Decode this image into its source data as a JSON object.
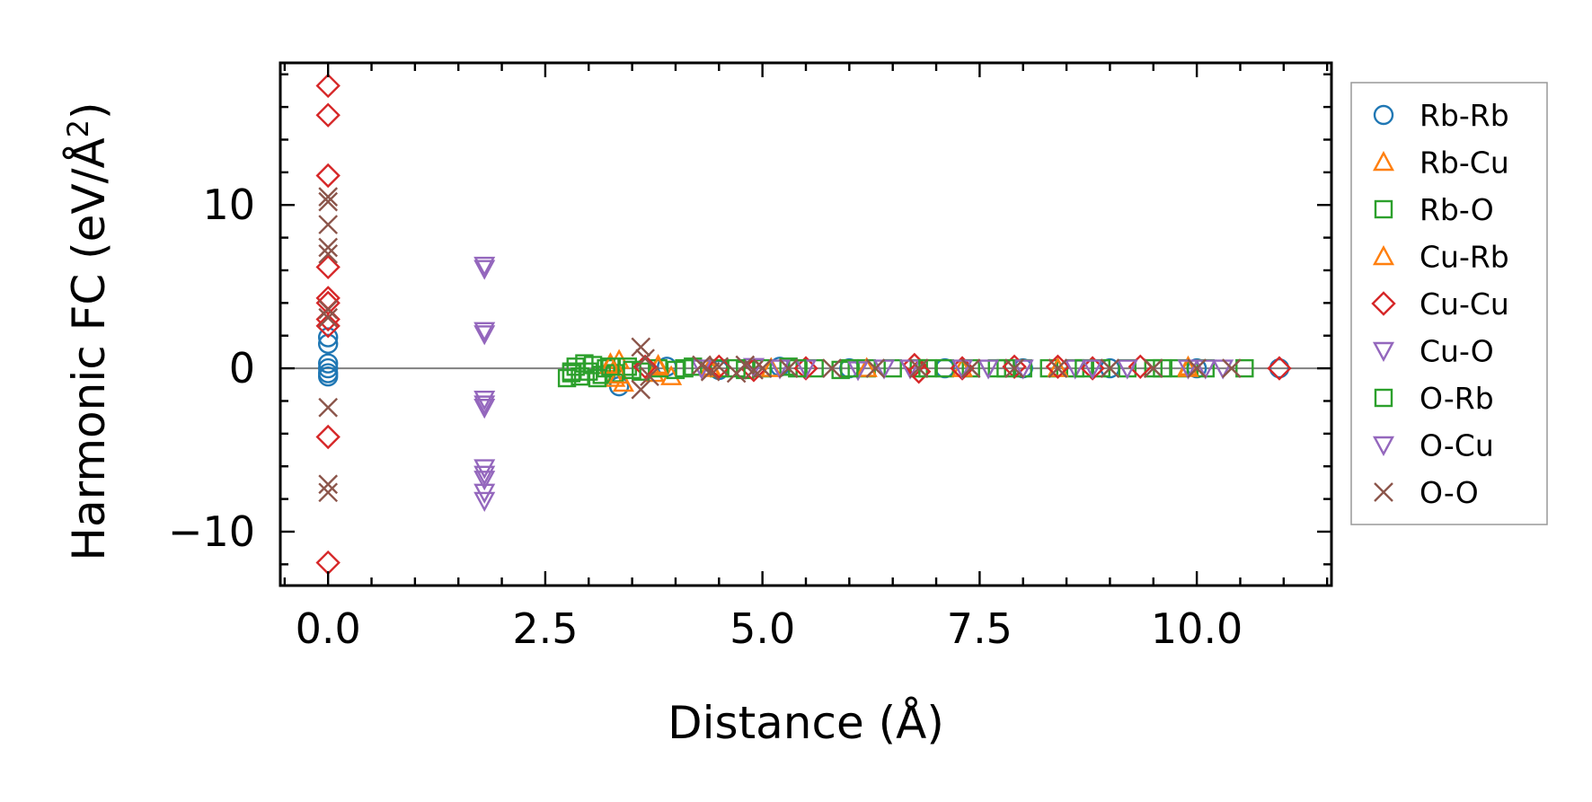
{
  "chart_data": {
    "type": "scatter",
    "title": "",
    "xlabel": "Distance (Å)",
    "ylabel": "Harmonic FC (eV/Å²)",
    "ylabel_parts": {
      "main": "Harmonic FC (eV/Å",
      "sup": "2",
      "tail": ")"
    },
    "xlim": [
      -0.55,
      11.55
    ],
    "ylim": [
      -13.3,
      18.7
    ],
    "xticks": [
      0.0,
      2.5,
      5.0,
      7.5,
      10.0
    ],
    "xtick_labels": [
      "0.0",
      "2.5",
      "5.0",
      "7.5",
      "10.0"
    ],
    "yticks": [
      -10,
      0,
      10
    ],
    "ytick_labels": [
      "−10",
      "0",
      "10"
    ],
    "reference_line_y": 0,
    "grid": false,
    "legend_position": "outside-right",
    "series": [
      {
        "name": "Rb-Rb",
        "marker": "circle",
        "color": "#1f77b4",
        "x": [
          0,
          0,
          0,
          0,
          0,
          0,
          3.35,
          3.9,
          4.5,
          5.2,
          6.0,
          7.1,
          8.0,
          9.0,
          10.0,
          10.95
        ],
        "y": [
          1.5,
          0.3,
          0.0,
          -0.3,
          -0.5,
          1.9,
          -1.1,
          0.1,
          -0.1,
          0.1,
          0.0,
          0.0,
          0.0,
          0.0,
          0.0,
          0.0
        ]
      },
      {
        "name": "Rb-Cu",
        "marker": "triangle-up",
        "color": "#ff7f0e",
        "x": [
          3.25,
          3.3,
          3.35,
          3.4,
          3.75,
          3.8,
          3.95,
          4.4,
          5.1,
          6.2,
          7.3,
          8.4,
          9.9
        ],
        "y": [
          0.3,
          -0.6,
          0.5,
          -0.9,
          -0.3,
          0.2,
          -0.5,
          0.1,
          0.0,
          0.0,
          0.0,
          0.0,
          0.1
        ]
      },
      {
        "name": "Rb-O",
        "marker": "square",
        "color": "#2ca02c",
        "x": [
          2.75,
          2.8,
          2.85,
          2.9,
          3.0,
          3.05,
          3.15,
          3.2,
          3.3,
          3.45,
          3.6,
          3.8,
          4.0,
          4.2,
          4.5,
          4.8,
          5.0,
          5.3,
          5.6,
          5.9,
          6.2,
          6.5,
          6.8,
          7.1,
          7.4,
          7.7,
          8.0,
          8.3,
          8.6,
          8.9,
          9.2,
          9.5,
          9.8,
          10.1,
          10.55
        ],
        "y": [
          -0.6,
          -0.3,
          0.1,
          -0.5,
          -0.2,
          0.2,
          -0.4,
          0.0,
          -0.3,
          0.1,
          -0.2,
          0.0,
          -0.1,
          0.1,
          0.0,
          -0.1,
          0.0,
          0.1,
          0.0,
          -0.1,
          0.0,
          0.0,
          0.0,
          0.0,
          0.0,
          0.0,
          0.0,
          0.0,
          0.0,
          0.0,
          0.0,
          0.0,
          0.0,
          0.0,
          0.0
        ]
      },
      {
        "name": "Cu-Rb",
        "marker": "triangle-up",
        "color": "#ff7f0e",
        "x": [
          3.25,
          3.35,
          3.8,
          4.4,
          5.1,
          6.2,
          7.3,
          8.4,
          9.9
        ],
        "y": [
          0.2,
          -0.4,
          0.1,
          0.0,
          0.0,
          0.0,
          0.0,
          0.0,
          0.0
        ]
      },
      {
        "name": "Cu-Cu",
        "marker": "diamond",
        "color": "#d62728",
        "x": [
          0,
          0,
          0,
          0,
          0,
          0,
          0,
          0,
          0,
          0,
          3.65,
          4.5,
          4.9,
          5.5,
          6.75,
          6.8,
          7.3,
          7.9,
          8.4,
          8.8,
          9.35,
          10.95
        ],
        "y": [
          17.3,
          15.5,
          11.8,
          6.2,
          4.3,
          4.0,
          3.0,
          -4.2,
          -11.9,
          2.6,
          0.1,
          0.1,
          -0.1,
          0.0,
          0.2,
          -0.2,
          0.0,
          0.1,
          0.1,
          0.0,
          0.1,
          0.0
        ]
      },
      {
        "name": "Cu-O",
        "marker": "triangle-down",
        "color": "#9467bd",
        "x": [
          1.8,
          1.8,
          1.8,
          1.8,
          1.8,
          1.8,
          1.8,
          1.8,
          4.3,
          4.9,
          5.5,
          6.1,
          6.7,
          7.3,
          8.0,
          8.6,
          9.2,
          9.9,
          10.3
        ],
        "y": [
          6.1,
          2.1,
          -1.9,
          -2.4,
          -6.1,
          -6.8,
          -7.6,
          -8.1,
          0.0,
          0.1,
          0.0,
          -0.1,
          0.0,
          0.0,
          0.0,
          0.0,
          0.0,
          0.0,
          0.0
        ]
      },
      {
        "name": "O-Rb",
        "marker": "square",
        "color": "#2ca02c",
        "x": [
          2.8,
          2.95,
          3.1,
          3.25,
          3.5,
          4.1,
          4.7,
          5.4,
          6.0,
          6.9,
          7.8,
          8.7,
          9.6
        ],
        "y": [
          -0.2,
          0.3,
          -0.6,
          0.1,
          -0.1,
          0.0,
          0.0,
          0.0,
          0.0,
          0.0,
          0.0,
          0.0,
          0.0
        ]
      },
      {
        "name": "O-Cu",
        "marker": "triangle-down",
        "color": "#9467bd",
        "x": [
          1.8,
          1.8,
          1.8,
          1.8,
          5.2,
          6.4,
          7.6,
          8.8,
          10.1
        ],
        "y": [
          6.3,
          2.3,
          -2.2,
          -6.5,
          0.0,
          0.0,
          0.0,
          0.0,
          0.0
        ]
      },
      {
        "name": "O-O",
        "marker": "x",
        "color": "#8c564b",
        "x": [
          0,
          0,
          0,
          0,
          0,
          0,
          0,
          0,
          0,
          0,
          3.6,
          3.6,
          3.65,
          3.7,
          4.3,
          4.4,
          4.5,
          4.7,
          4.8,
          4.9,
          5.0,
          5.3,
          5.8,
          6.3,
          6.8,
          7.4,
          7.9,
          8.4,
          9.0,
          9.5,
          10.0,
          10.4
        ],
        "y": [
          10.5,
          10.2,
          8.8,
          7.4,
          7.0,
          3.6,
          3.1,
          -2.4,
          -7.1,
          -7.6,
          1.3,
          -1.3,
          0.6,
          -0.5,
          0.2,
          -0.2,
          0.1,
          -0.3,
          0.2,
          -0.1,
          0.0,
          0.0,
          0.0,
          0.0,
          0.0,
          0.0,
          0.0,
          0.0,
          0.0,
          0.0,
          0.0,
          0.0
        ]
      }
    ]
  }
}
